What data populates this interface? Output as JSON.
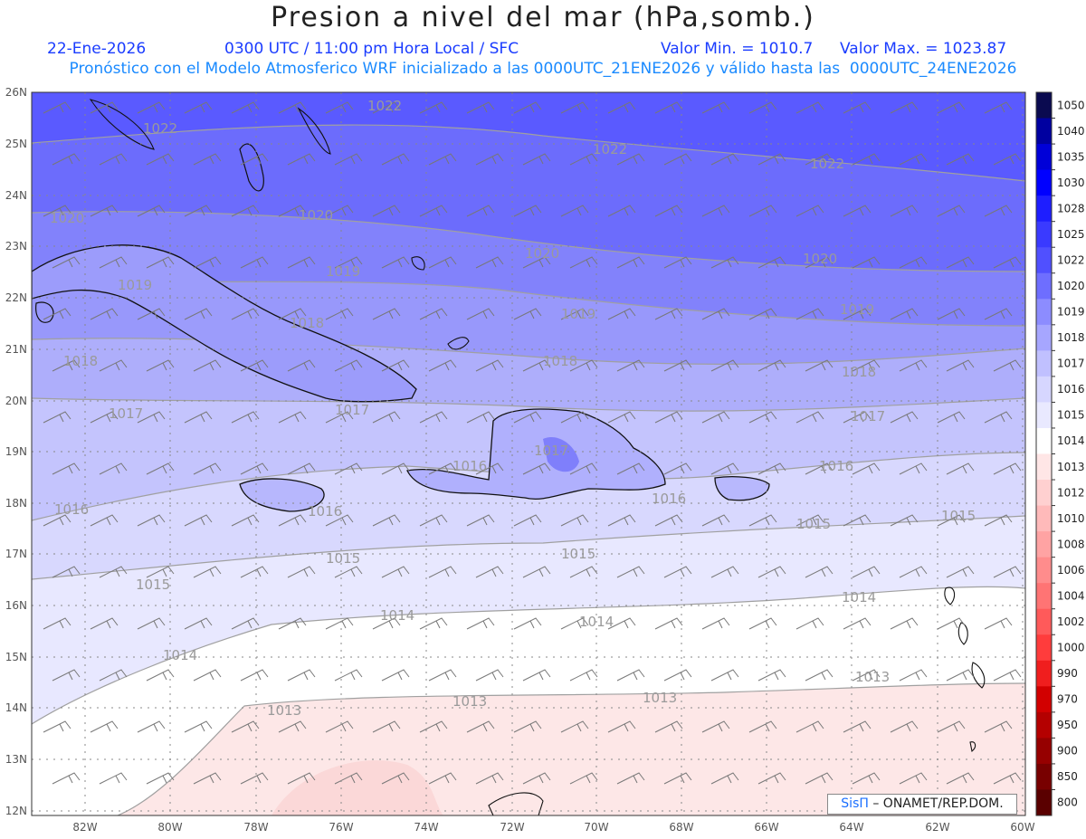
{
  "header": {
    "title": "Presion a nivel del mar (hPa,somb.)",
    "date": "22-Ene-2026",
    "time_info": "0300 UTC / 11:00 pm Hora Local / SFC",
    "min_value": "Valor Min. = 1010.7",
    "max_value": "Valor Max. = 1023.87",
    "model_info": "Pronóstico con el Modelo Atmosferico WRF inicializado a las 0000UTC_21ENE2026 y válido hasta las  0000UTC_24ENE2026"
  },
  "axes": {
    "lat_labels": [
      "26N",
      "25N",
      "24N",
      "23N",
      "22N",
      "21N",
      "20N",
      "19N",
      "18N",
      "17N",
      "16N",
      "15N",
      "14N",
      "13N",
      "12N"
    ],
    "lon_labels": [
      "82W",
      "80W",
      "78W",
      "76W",
      "74W",
      "72W",
      "70W",
      "68W",
      "66W",
      "64W",
      "62W",
      "60W"
    ]
  },
  "colorbar": {
    "levels": [
      "1050",
      "1040",
      "1035",
      "1030",
      "1028",
      "1025",
      "1022",
      "1020",
      "1019",
      "1018",
      "1017",
      "1016",
      "1015",
      "1014",
      "1013",
      "1012",
      "1010",
      "1008",
      "1006",
      "1004",
      "1002",
      "1000",
      "990",
      "970",
      "950",
      "900",
      "850",
      "800"
    ],
    "colors": [
      "#0a0a50",
      "#0000a0",
      "#0000d8",
      "#0000ff",
      "#1e1eff",
      "#3a3aff",
      "#5050ff",
      "#6e6eff",
      "#8c8cff",
      "#a6a6ff",
      "#c0c0ff",
      "#d6d6ff",
      "#e9e9ff",
      "#ffffff",
      "#ffe6e6",
      "#ffd0d0",
      "#ffbaba",
      "#ffa3a3",
      "#ff8c8c",
      "#ff7474",
      "#ff5a5a",
      "#ff3c3c",
      "#f01e1e",
      "#d20000",
      "#b40000",
      "#960000",
      "#780000",
      "#5a0000"
    ]
  },
  "isobar_labels": [
    "1022",
    "1022",
    "1022",
    "1022",
    "1020",
    "1020",
    "1020",
    "1020",
    "1019",
    "1019",
    "1019",
    "1019",
    "1018",
    "1018",
    "1018",
    "1018",
    "1017",
    "1017",
    "1017",
    "1017",
    "1016",
    "1016",
    "1016",
    "1016",
    "1015",
    "1015",
    "1015",
    "1015",
    "1014",
    "1014",
    "1014",
    "1014",
    "1013",
    "1013",
    "1013",
    "1013",
    "1016",
    "1015"
  ],
  "credit": {
    "brand": "SisΠ",
    "text": " – ONAMET/REP.DOM."
  }
}
